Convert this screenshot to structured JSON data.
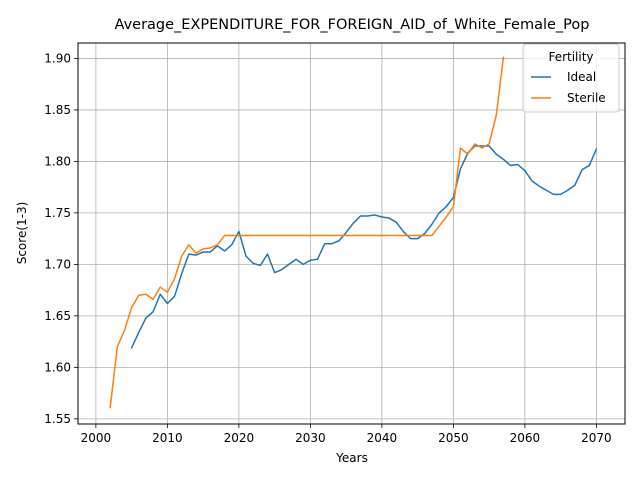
{
  "chart_data": {
    "type": "line",
    "title": "Average_EXPENDITURE_FOR_FOREIGN_AID_of_White_Female_Pop",
    "xlabel": "Years",
    "ylabel": "Score(1-3)",
    "xlim": [
      1997.5,
      2074
    ],
    "ylim": [
      1.545,
      1.915
    ],
    "xticks": [
      2000,
      2010,
      2020,
      2030,
      2040,
      2050,
      2060,
      2070
    ],
    "yticks": [
      1.55,
      1.6,
      1.65,
      1.7,
      1.75,
      1.8,
      1.85,
      1.9
    ],
    "xtick_labels": [
      "2000",
      "2010",
      "2020",
      "2030",
      "2040",
      "2050",
      "2060",
      "2070"
    ],
    "ytick_labels": [
      "1.55",
      "1.60",
      "1.65",
      "1.70",
      "1.75",
      "1.80",
      "1.85",
      "1.90"
    ],
    "grid": true,
    "legend": {
      "title": "Fertility",
      "placement": "top-right"
    },
    "series": [
      {
        "name": "Ideal",
        "color": "#1f77b4",
        "x": [
          2005,
          2006,
          2007,
          2008,
          2009,
          2010,
          2011,
          2012,
          2013,
          2014,
          2015,
          2016,
          2017,
          2018,
          2019,
          2020,
          2021,
          2022,
          2023,
          2024,
          2025,
          2026,
          2027,
          2028,
          2029,
          2030,
          2031,
          2032,
          2033,
          2034,
          2035,
          2036,
          2037,
          2038,
          2039,
          2040,
          2041,
          2042,
          2043,
          2044,
          2045,
          2046,
          2047,
          2048,
          2049,
          2050,
          2051,
          2052,
          2053,
          2054,
          2055,
          2056,
          2057,
          2058,
          2059,
          2060,
          2061,
          2062,
          2063,
          2064,
          2065,
          2066,
          2067,
          2068,
          2069,
          2070
        ],
        "y": [
          1.619,
          1.634,
          1.648,
          1.654,
          1.671,
          1.662,
          1.669,
          1.691,
          1.71,
          1.709,
          1.712,
          1.712,
          1.718,
          1.713,
          1.719,
          1.732,
          1.708,
          1.701,
          1.699,
          1.71,
          1.692,
          1.695,
          1.7,
          1.705,
          1.7,
          1.704,
          1.705,
          1.72,
          1.72,
          1.723,
          1.731,
          1.74,
          1.747,
          1.747,
          1.748,
          1.746,
          1.745,
          1.741,
          1.732,
          1.725,
          1.725,
          1.73,
          1.739,
          1.75,
          1.756,
          1.765,
          1.793,
          1.808,
          1.815,
          1.815,
          1.815,
          1.807,
          1.802,
          1.796,
          1.797,
          1.791,
          1.781,
          1.776,
          1.772,
          1.768,
          1.768,
          1.772,
          1.777,
          1.792,
          1.796,
          1.812
        ]
      },
      {
        "name": "Sterile",
        "color": "#ff7f0e",
        "x": [
          2002,
          2003,
          2004,
          2005,
          2006,
          2007,
          2008,
          2009,
          2010,
          2011,
          2012,
          2013,
          2014,
          2015,
          2016,
          2017,
          2018,
          2019,
          2020,
          2021,
          2022,
          2023,
          2024,
          2025,
          2026,
          2027,
          2028,
          2029,
          2030,
          2031,
          2032,
          2033,
          2034,
          2035,
          2036,
          2037,
          2038,
          2039,
          2040,
          2041,
          2042,
          2043,
          2044,
          2045,
          2046,
          2047,
          2048,
          2049,
          2050,
          2051,
          2052,
          2053,
          2054,
          2055,
          2056,
          2057
        ],
        "y": [
          1.561,
          1.62,
          1.636,
          1.658,
          1.67,
          1.671,
          1.666,
          1.678,
          1.673,
          1.686,
          1.708,
          1.719,
          1.711,
          1.715,
          1.716,
          1.719,
          1.728,
          1.728,
          1.728,
          1.728,
          1.728,
          1.728,
          1.728,
          1.728,
          1.728,
          1.728,
          1.728,
          1.728,
          1.728,
          1.728,
          1.728,
          1.728,
          1.728,
          1.728,
          1.728,
          1.728,
          1.728,
          1.728,
          1.728,
          1.728,
          1.728,
          1.728,
          1.728,
          1.728,
          1.728,
          1.728,
          1.737,
          1.746,
          1.756,
          1.813,
          1.807,
          1.817,
          1.813,
          1.817,
          1.845,
          1.901
        ]
      }
    ]
  }
}
